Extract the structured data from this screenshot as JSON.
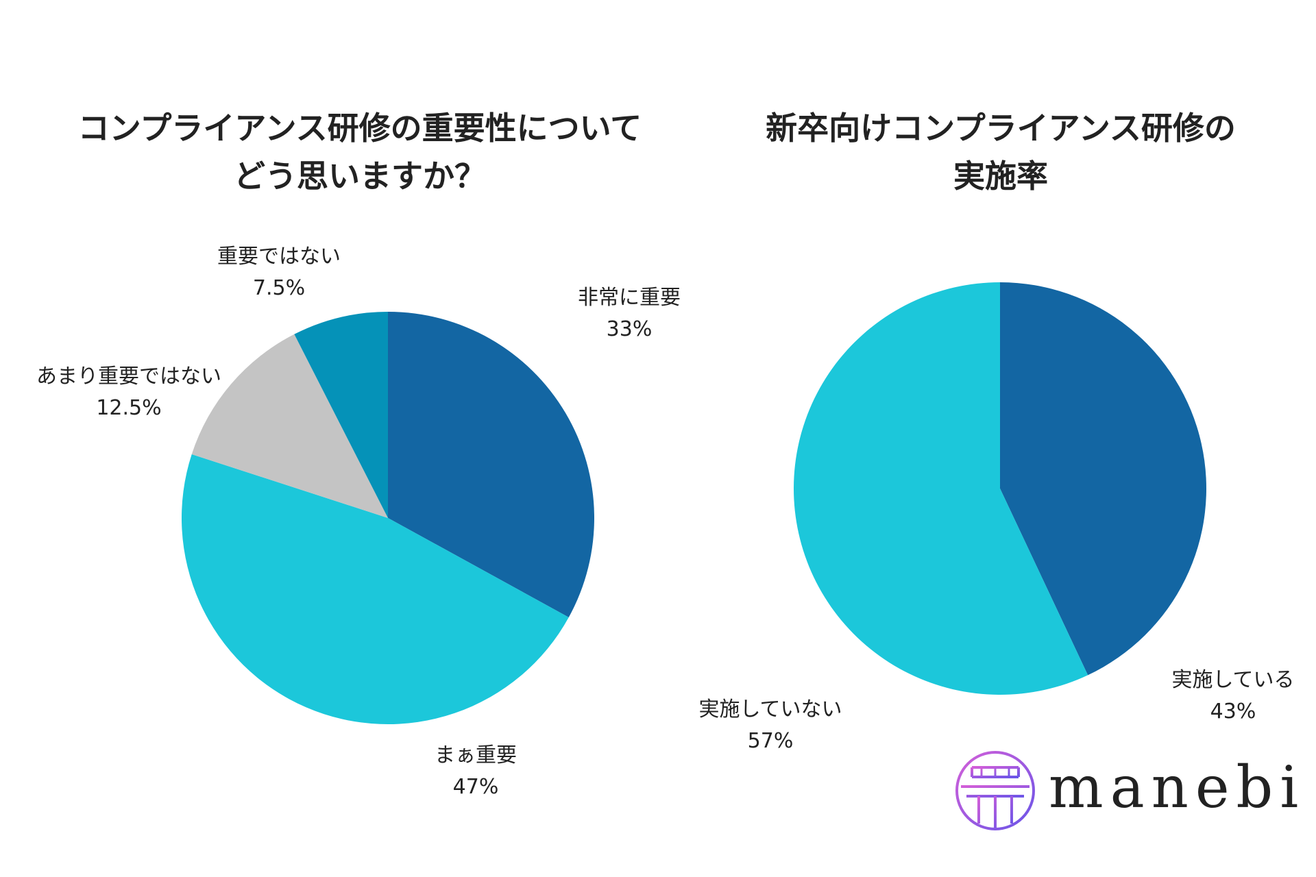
{
  "chart_data": [
    {
      "type": "pie",
      "title_lines": [
        "コンプライアンス研修の重要性について",
        "どう思いますか？"
      ],
      "slices": [
        {
          "name": "非常に重要",
          "value": 33,
          "value_label": "33%",
          "color": "#1366a3"
        },
        {
          "name": "まぁ重要",
          "value": 47,
          "value_label": "47%",
          "color": "#1cc7da"
        },
        {
          "name": "あまり重要ではない",
          "value": 12.5,
          "value_label": "12.5%",
          "color": "#c4c4c4"
        },
        {
          "name": "重要ではない",
          "value": 7.5,
          "value_label": "7.5%",
          "color": "#0592b8"
        }
      ],
      "start": "top",
      "direction": "clockwise"
    },
    {
      "type": "pie",
      "title_lines": [
        "新卒向けコンプライアンス研修の",
        "実施率"
      ],
      "slices": [
        {
          "name": "実施している",
          "value": 43,
          "value_label": "43%",
          "color": "#1366a3"
        },
        {
          "name": "実施していない",
          "value": 57,
          "value_label": "57%",
          "color": "#1cc7da"
        }
      ],
      "start": "top",
      "direction": "clockwise"
    }
  ],
  "logo": {
    "text": "manebi",
    "gradient_start": "#d45fd8",
    "gradient_end": "#6a55e8"
  }
}
